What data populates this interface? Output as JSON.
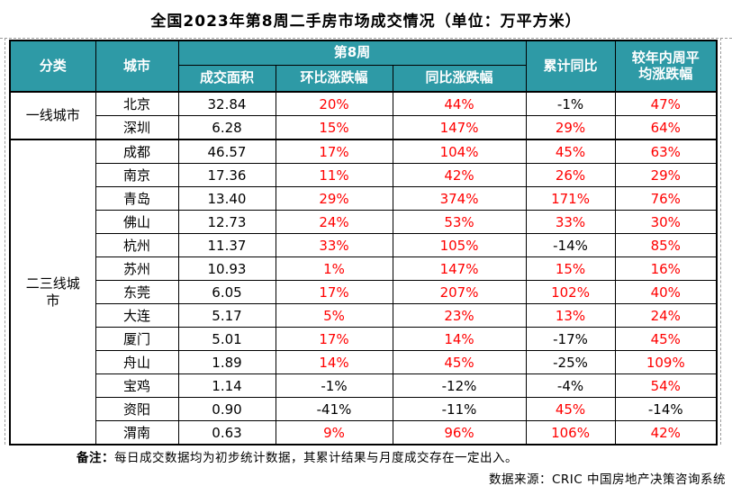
{
  "title": "全国2023年第8周二手房市场成交情况（单位：万平方米）",
  "chart_data": {
    "type": "table",
    "title": "全国2023年第8周二手房市场成交情况（单位：万平方米）",
    "unit": "万平方米",
    "headers": {
      "category": "分类",
      "city": "城市",
      "week_group": "第8周",
      "area": "成交面积",
      "wow_change": "环比涨跌幅",
      "yoy_change": "同比涨跌幅",
      "cumulative_yoy": "累计同比",
      "vs_yearly_weekly_avg": "较年内周平\n均涨跌幅"
    },
    "groups": [
      {
        "category": "一线城市",
        "rows": [
          {
            "city": "北京",
            "area": "32.84",
            "wow": "20%",
            "yoy": "44%",
            "cum": "-1%",
            "avg": "47%"
          },
          {
            "city": "深圳",
            "area": "6.28",
            "wow": "15%",
            "yoy": "147%",
            "cum": "29%",
            "avg": "64%"
          }
        ]
      },
      {
        "category": "二三线城\n市",
        "rows": [
          {
            "city": "成都",
            "area": "46.57",
            "wow": "17%",
            "yoy": "104%",
            "cum": "45%",
            "avg": "63%"
          },
          {
            "city": "南京",
            "area": "17.36",
            "wow": "11%",
            "yoy": "42%",
            "cum": "26%",
            "avg": "29%"
          },
          {
            "city": "青岛",
            "area": "13.40",
            "wow": "29%",
            "yoy": "374%",
            "cum": "171%",
            "avg": "76%"
          },
          {
            "city": "佛山",
            "area": "12.73",
            "wow": "24%",
            "yoy": "53%",
            "cum": "33%",
            "avg": "30%"
          },
          {
            "city": "杭州",
            "area": "11.37",
            "wow": "33%",
            "yoy": "105%",
            "cum": "-14%",
            "avg": "85%"
          },
          {
            "city": "苏州",
            "area": "10.93",
            "wow": "1%",
            "yoy": "147%",
            "cum": "15%",
            "avg": "16%"
          },
          {
            "city": "东莞",
            "area": "6.05",
            "wow": "17%",
            "yoy": "207%",
            "cum": "102%",
            "avg": "40%"
          },
          {
            "city": "大连",
            "area": "5.17",
            "wow": "5%",
            "yoy": "23%",
            "cum": "13%",
            "avg": "24%"
          },
          {
            "city": "厦门",
            "area": "5.01",
            "wow": "17%",
            "yoy": "14%",
            "cum": "-17%",
            "avg": "45%"
          },
          {
            "city": "舟山",
            "area": "1.89",
            "wow": "14%",
            "yoy": "45%",
            "cum": "-25%",
            "avg": "109%"
          },
          {
            "city": "宝鸡",
            "area": "1.14",
            "wow": "-1%",
            "yoy": "-12%",
            "cum": "-4%",
            "avg": "54%"
          },
          {
            "city": "资阳",
            "area": "0.90",
            "wow": "-41%",
            "yoy": "-11%",
            "cum": "45%",
            "avg": "-14%"
          },
          {
            "city": "渭南",
            "area": "0.63",
            "wow": "9%",
            "yoy": "96%",
            "cum": "106%",
            "avg": "42%"
          }
        ]
      }
    ]
  },
  "notes": {
    "remark_label": "备注：",
    "remark_text": "每日成交数据均为初步统计数据，其累计结果与月度成交存在一定出入。",
    "source_text": "数据来源：CRIC 中国房地产决策咨询系统"
  },
  "colors": {
    "header_bg": "#2E9AA6",
    "header_text": "#FFFFFF",
    "positive_value": "#FF0000",
    "negative_value": "#000000",
    "border": "#000000"
  }
}
